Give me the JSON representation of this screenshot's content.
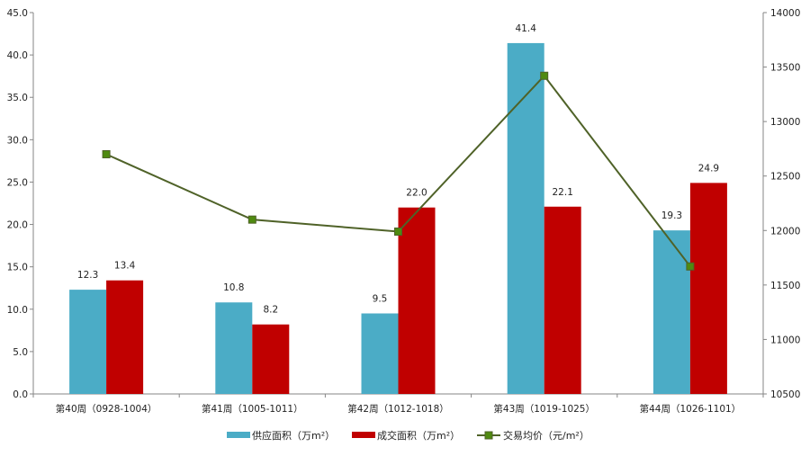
{
  "chart_data": {
    "type": "bar",
    "title": "",
    "categories": [
      "第40周（0928-1004）",
      "第41周（1005-1011）",
      "第42周（1012-1018）",
      "第43周（1019-1025）",
      "第44周（1026-1101）"
    ],
    "series": [
      {
        "name": "供应面积（万m²）",
        "type": "bar",
        "axis": "left",
        "color": "#4BACC6",
        "values": [
          12.3,
          10.8,
          9.5,
          41.4,
          19.3
        ],
        "labels": [
          "12.3",
          "10.8",
          "9.5",
          "41.4",
          "19.3"
        ]
      },
      {
        "name": "成交面积（万m²）",
        "type": "bar",
        "axis": "left",
        "color": "#C00000",
        "values": [
          13.4,
          8.2,
          22.0,
          22.1,
          24.9
        ],
        "labels": [
          "13.4",
          "8.2",
          "22.0",
          "22.1",
          "24.9"
        ]
      },
      {
        "name": "交易均价（元/m²）",
        "type": "line",
        "axis": "right",
        "color": "#4F6228",
        "marker_color": "#4F8A10",
        "values": [
          12700,
          12100,
          11990,
          13420,
          11670
        ]
      }
    ],
    "y_left": {
      "range": [
        0,
        45
      ],
      "ticks": [
        "0.0",
        "5.0",
        "10.0",
        "15.0",
        "20.0",
        "25.0",
        "30.0",
        "35.0",
        "40.0",
        "45.0"
      ]
    },
    "y_right": {
      "range": [
        10500,
        14000
      ],
      "ticks": [
        "10500",
        "11000",
        "11500",
        "12000",
        "12500",
        "13000",
        "13500",
        "14000"
      ]
    },
    "grid": false,
    "legend_position": "bottom"
  }
}
